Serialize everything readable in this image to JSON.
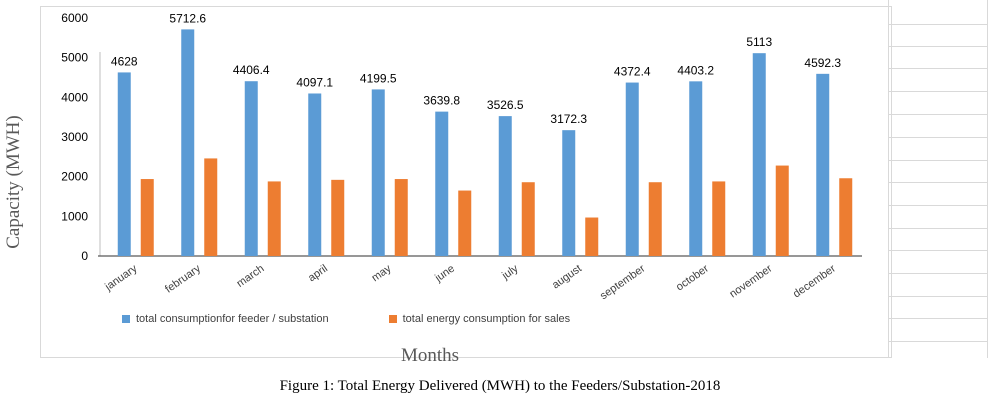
{
  "chart_data": {
    "type": "bar",
    "categories": [
      "january",
      "february",
      "march",
      "april",
      "may",
      "june",
      "july",
      "august",
      "september",
      "october",
      "november",
      "december"
    ],
    "series": [
      {
        "name": "total consumptionfor feeder / substation",
        "color": "#5B9BD5",
        "values": [
          4628,
          5712.6,
          4406.4,
          4097.1,
          4199.5,
          3639.8,
          3526.5,
          3172.3,
          4372.4,
          4403.2,
          5113,
          4592.3
        ],
        "labels": [
          "4628",
          "5712.6",
          "4406.4",
          "4097.1",
          "4199.5",
          "3639.8",
          "3526.5",
          "3172.3",
          "4372.4",
          "4403.2",
          "5113",
          "4592.3"
        ]
      },
      {
        "name": "total energy consumption for sales",
        "color": "#ED7D31",
        "values": [
          1940,
          2460,
          1880,
          1920,
          1940,
          1650,
          1860,
          970,
          1860,
          1880,
          2280,
          1960
        ]
      }
    ],
    "ylabel": "Capacity (MWH)",
    "xlabel": "Months",
    "ylim": [
      0,
      6000
    ],
    "yticks": [
      "0",
      "1000",
      "2000",
      "3000",
      "4000",
      "5000",
      "6000"
    ],
    "grid": false,
    "legend": "bottom"
  },
  "caption": "Figure 1: Total Energy Delivered (MWH) to the Feeders/Substation-2018"
}
